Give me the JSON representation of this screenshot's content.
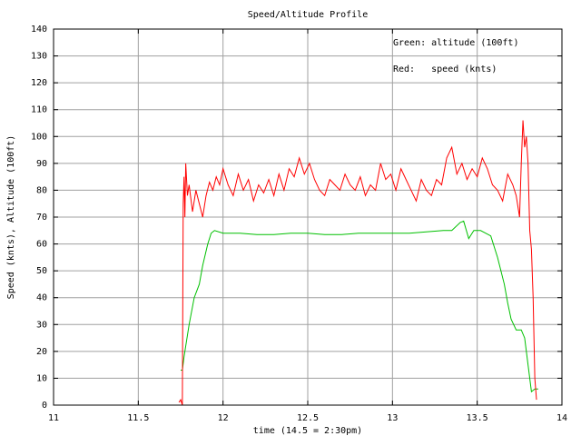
{
  "chart_data": {
    "type": "line",
    "title": "Speed/Altitude Profile",
    "x_label": "time (14.5 = 2:30pm)",
    "y_label": "Speed (knts), Altitude (100ft)",
    "xlim": [
      11,
      14
    ],
    "xticks": [
      11,
      11.5,
      12,
      12.5,
      13,
      13.5,
      14
    ],
    "ylim": [
      0,
      140
    ],
    "yticks": [
      0,
      10,
      20,
      30,
      40,
      50,
      60,
      70,
      80,
      90,
      100,
      110,
      120,
      130,
      140
    ],
    "grid": true,
    "legend": "upper right",
    "series": [
      {
        "name": "Green: altitude (100ft)",
        "color": "#00c000",
        "x": [
          11.75,
          11.76,
          11.77,
          11.8,
          11.83,
          11.86,
          11.88,
          11.91,
          11.93,
          11.95,
          12.0,
          12.1,
          12.2,
          12.3,
          12.4,
          12.5,
          12.6,
          12.7,
          12.8,
          12.9,
          13.0,
          13.1,
          13.2,
          13.3,
          13.35,
          13.4,
          13.42,
          13.45,
          13.48,
          13.52,
          13.58,
          13.62,
          13.66,
          13.68,
          13.7,
          13.73,
          13.76,
          13.78,
          13.8,
          13.82,
          13.84,
          13.86
        ],
        "values": [
          13,
          13,
          18,
          30,
          40,
          45,
          52,
          60,
          64,
          65,
          64,
          64,
          63.5,
          63.5,
          64,
          64,
          63.5,
          63.5,
          64,
          64,
          64,
          64,
          64.5,
          65,
          65,
          68,
          68.5,
          62,
          65,
          65,
          63,
          55,
          45,
          38,
          32,
          28,
          28,
          25,
          15,
          5,
          6,
          6
        ]
      },
      {
        "name": "Red:   speed (knts)",
        "color": "#ff0000",
        "x": [
          11.74,
          11.75,
          11.76,
          11.765,
          11.77,
          11.775,
          11.78,
          11.79,
          11.8,
          11.82,
          11.84,
          11.86,
          11.88,
          11.9,
          11.92,
          11.94,
          11.96,
          11.98,
          12.0,
          12.03,
          12.06,
          12.09,
          12.12,
          12.15,
          12.18,
          12.21,
          12.24,
          12.27,
          12.3,
          12.33,
          12.36,
          12.39,
          12.42,
          12.45,
          12.48,
          12.51,
          12.54,
          12.57,
          12.6,
          12.63,
          12.66,
          12.69,
          12.72,
          12.75,
          12.78,
          12.81,
          12.84,
          12.87,
          12.9,
          12.93,
          12.96,
          12.99,
          13.02,
          13.05,
          13.08,
          13.11,
          13.14,
          13.17,
          13.2,
          13.23,
          13.26,
          13.29,
          13.32,
          13.35,
          13.38,
          13.41,
          13.44,
          13.47,
          13.5,
          13.53,
          13.56,
          13.59,
          13.62,
          13.65,
          13.68,
          13.71,
          13.73,
          13.75,
          13.76,
          13.77,
          13.78,
          13.79,
          13.8,
          13.81,
          13.82,
          13.83,
          13.84,
          13.85
        ],
        "values": [
          1,
          2,
          0,
          75,
          85,
          70,
          90,
          78,
          82,
          72,
          80,
          75,
          70,
          78,
          83,
          80,
          85,
          82,
          88,
          82,
          78,
          86,
          80,
          84,
          76,
          82,
          79,
          84,
          78,
          86,
          80,
          88,
          85,
          92,
          86,
          90,
          84,
          80,
          78,
          84,
          82,
          80,
          86,
          82,
          80,
          85,
          78,
          82,
          80,
          90,
          84,
          86,
          80,
          88,
          84,
          80,
          76,
          84,
          80,
          78,
          84,
          82,
          92,
          96,
          86,
          90,
          84,
          88,
          85,
          92,
          88,
          82,
          80,
          76,
          86,
          82,
          78,
          70,
          90,
          106,
          96,
          100,
          90,
          65,
          58,
          40,
          10,
          2
        ]
      }
    ]
  }
}
